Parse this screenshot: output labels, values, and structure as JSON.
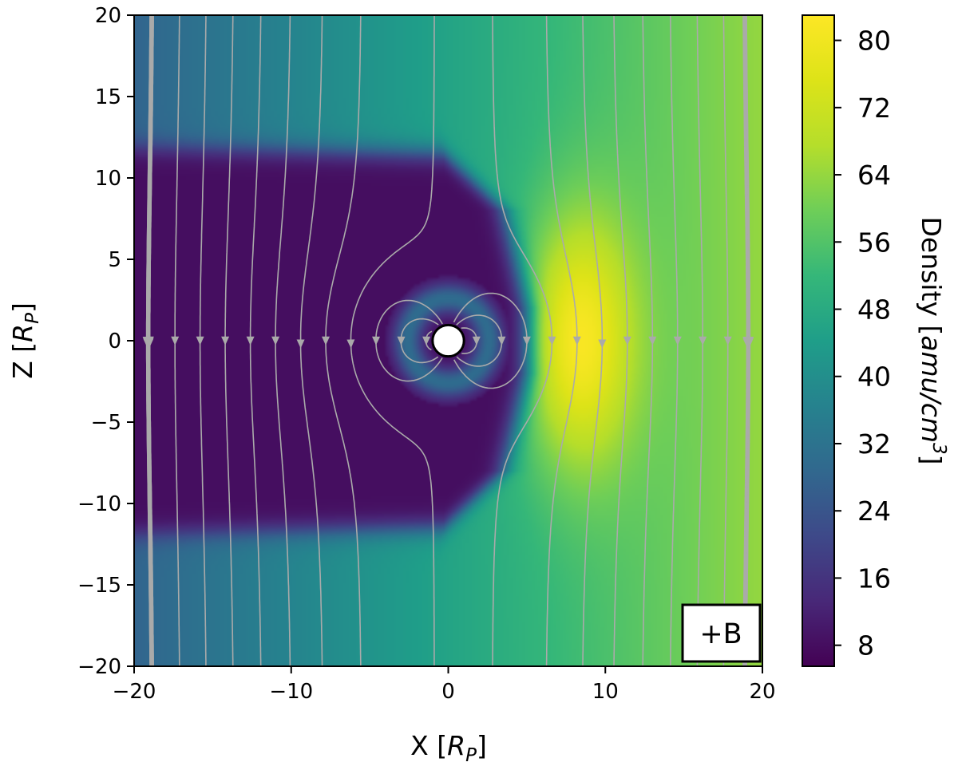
{
  "chart_data": {
    "type": "heatmap",
    "title": "",
    "xlabel": {
      "main": "X [",
      "var": "R",
      "sub": "P",
      "close": "]"
    },
    "ylabel": {
      "main": "Z [",
      "var": "R",
      "sub": "P",
      "close": "]"
    },
    "xlim": [
      -20,
      20
    ],
    "ylim": [
      -20,
      20
    ],
    "xticks": [
      -20,
      -10,
      0,
      10,
      20
    ],
    "xtick_labels": [
      "−20",
      "−10",
      "0",
      "10",
      "20"
    ],
    "yticks": [
      20,
      15,
      10,
      5,
      0,
      -5,
      -10,
      -15,
      -20
    ],
    "ytick_labels": [
      "20",
      "15",
      "10",
      "5",
      "0",
      "−5",
      "−10",
      "−15",
      "−20"
    ],
    "colormap": "viridis",
    "colorbar": {
      "label": {
        "main": "Density [",
        "unit": "amu/cm",
        "sup": "3",
        "close": "]"
      },
      "range": [
        5.5,
        83
      ],
      "ticks": [
        80,
        72,
        64,
        56,
        48,
        40,
        32,
        24,
        16,
        8
      ],
      "tick_labels": [
        "80",
        "72",
        "64",
        "56",
        "48",
        "40",
        "32",
        "24",
        "16",
        "8"
      ]
    },
    "field": {
      "background_density": [
        28,
        64
      ],
      "cavity_density": 8,
      "magnetopause_nose_x": 5,
      "cavity_tail_x": -20,
      "cavity_halfwidth_z": 11.5,
      "compressed_peak_density": 82,
      "compressed_peak_x": 8.5,
      "obstacle_radius": 1
    },
    "streamlines": {
      "color": "#aaaaaa",
      "style": "arrows"
    },
    "annotation": "+B",
    "planet_marker": {
      "x": 0,
      "z": 0,
      "fill": "#ffffff"
    }
  }
}
